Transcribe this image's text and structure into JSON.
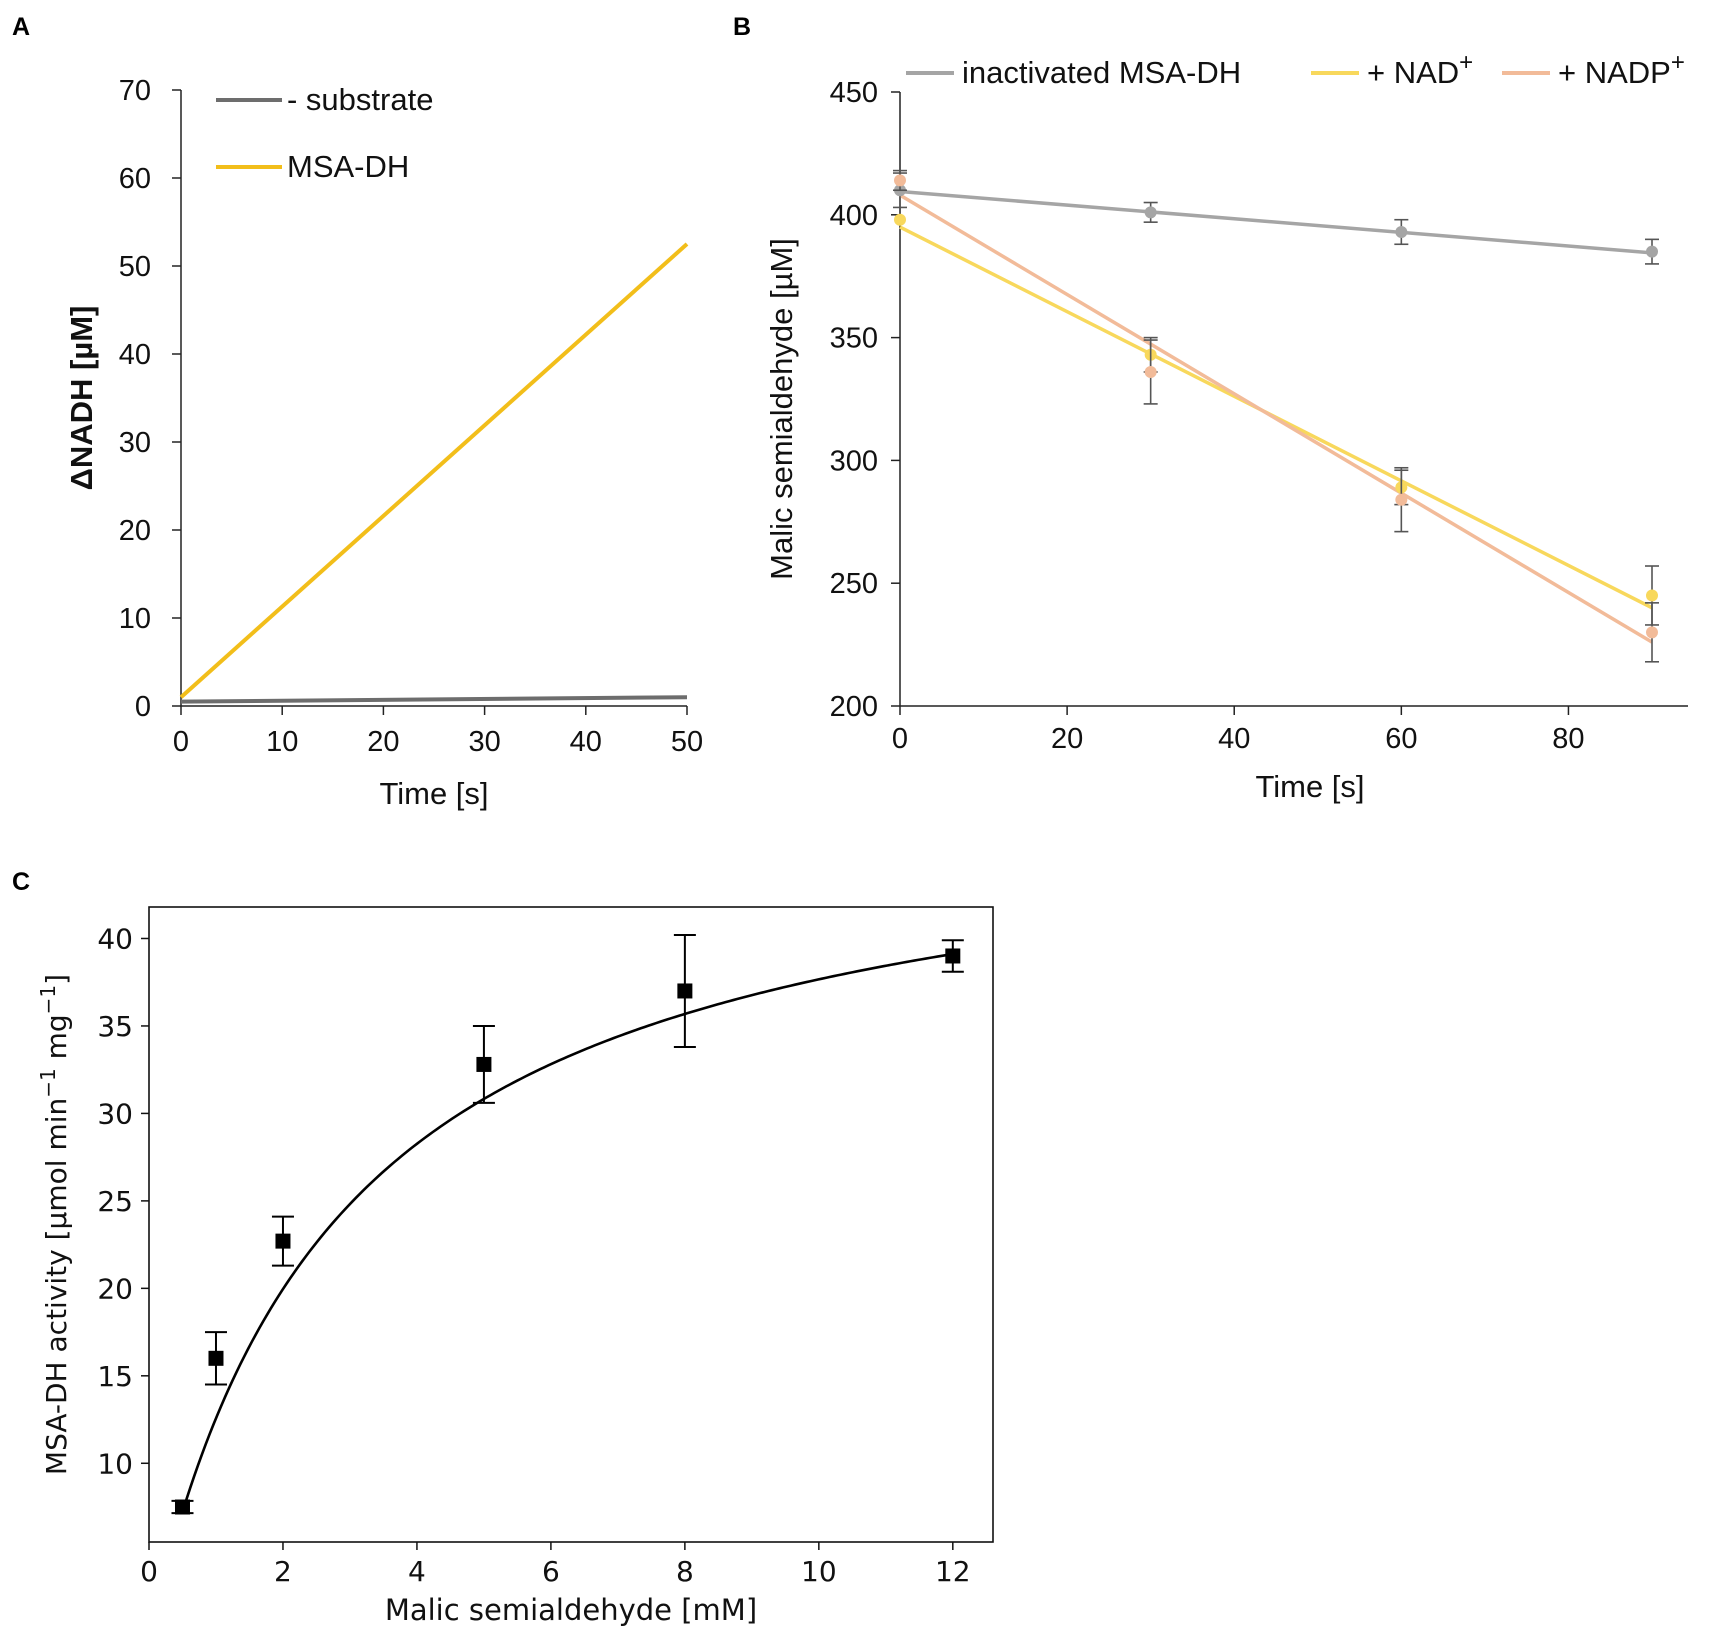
{
  "chart_data": [
    {
      "panel": "A",
      "type": "line",
      "title": "",
      "xlabel": "Time [s]",
      "ylabel": "ΔNADH [µM]",
      "xlim": [
        0,
        50
      ],
      "ylim": [
        0,
        70
      ],
      "xticks": [
        0,
        10,
        20,
        30,
        40,
        50
      ],
      "yticks": [
        0,
        10,
        20,
        30,
        40,
        50,
        60,
        70
      ],
      "grid": false,
      "legend_position": "top-left",
      "series": [
        {
          "name": "- substrate",
          "color": "#6d6d6d",
          "x": [
            0,
            50
          ],
          "y": [
            0.5,
            1.0
          ]
        },
        {
          "name": "MSA-DH",
          "color": "#f2be1a",
          "x": [
            0,
            50
          ],
          "y": [
            1.0,
            52.5
          ]
        }
      ]
    },
    {
      "panel": "B",
      "type": "line",
      "title": "",
      "xlabel": "Time [s]",
      "ylabel": "Malic semialdehyde [µM]",
      "xlim": [
        0,
        95
      ],
      "ylim": [
        200,
        450
      ],
      "xticks": [
        0,
        20,
        40,
        60,
        80
      ],
      "yticks": [
        200,
        250,
        300,
        350,
        400,
        450
      ],
      "grid": false,
      "legend_position": "top",
      "series": [
        {
          "name": "inactivated MSA-DH",
          "superscript": "",
          "color": "#a5a5a5",
          "x": [
            0,
            30,
            60,
            90
          ],
          "y": [
            410,
            401,
            393,
            385
          ],
          "err": [
            7,
            4,
            5,
            5
          ],
          "fit": [
            409.5,
            384.5
          ]
        },
        {
          "name": "+ NAD",
          "superscript": "+",
          "color": "#f8d85c",
          "x": [
            0,
            30,
            60,
            90
          ],
          "y": [
            398,
            343,
            289,
            245
          ],
          "err": [
            0,
            7,
            7,
            12
          ],
          "fit": [
            395,
            240
          ]
        },
        {
          "name": "+ NADP",
          "superscript": "+",
          "color": "#f2bb99",
          "x": [
            0,
            30,
            60,
            90
          ],
          "y": [
            414,
            336,
            284,
            230
          ],
          "err": [
            4,
            13,
            13,
            12
          ],
          "fit": [
            408,
            226
          ]
        }
      ]
    },
    {
      "panel": "C",
      "type": "scatter",
      "title": "",
      "xlabel": "Malic semialdehyde [mM]",
      "ylabel": "MSA-DH activity [µmol min",
      "ylabel_sup1": "−1",
      "ylabel_mid": " mg",
      "ylabel_sup2": "−1",
      "ylabel_end": "]",
      "xlim": [
        0,
        12.6
      ],
      "ylim": [
        5.5,
        41.8
      ],
      "xticks": [
        0,
        2,
        4,
        6,
        8,
        10,
        12
      ],
      "yticks": [
        10,
        15,
        20,
        25,
        30,
        35,
        40
      ],
      "grid": false,
      "points": {
        "x": [
          0.5,
          1,
          2,
          5,
          8,
          12
        ],
        "y": [
          7.5,
          16,
          22.7,
          32.8,
          37,
          39
        ],
        "err": [
          0.35,
          1.5,
          1.4,
          2.2,
          3.2,
          0.9
        ]
      },
      "fit": {
        "model": "michaelis-menten",
        "vmax": 48.4,
        "km": 2.85,
        "x_range": [
          0.5,
          12
        ]
      }
    }
  ],
  "panels": {
    "a": "A",
    "b": "B",
    "c": "C"
  }
}
